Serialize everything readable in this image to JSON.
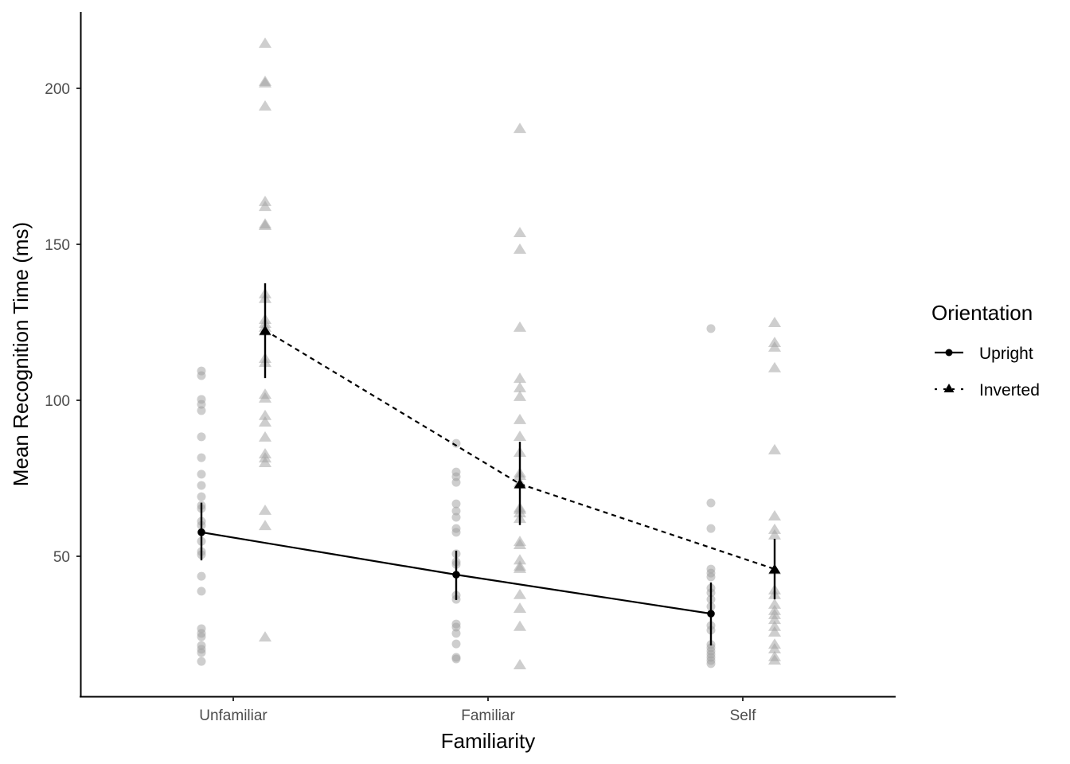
{
  "chart_data": {
    "type": "line",
    "title": "",
    "xlabel": "Familiarity",
    "ylabel": "Mean Recognition Time (ms)",
    "categories": [
      "Unfamiliar",
      "Familiar",
      "Self"
    ],
    "yticks": [
      50,
      100,
      150,
      200
    ],
    "ylim": [
      10,
      225
    ],
    "grid": false,
    "legend": {
      "title": "Orientation",
      "position": "right",
      "entries": [
        {
          "label": "Upright",
          "linestyle": "solid",
          "marker": "circle"
        },
        {
          "label": "Inverted",
          "linestyle": "dashed",
          "marker": "triangle"
        }
      ]
    },
    "series": [
      {
        "name": "Upright",
        "linestyle": "solid",
        "marker": "circle",
        "values": [
          57.7,
          44.1,
          31.6
        ],
        "error_low": [
          48.7,
          36.0,
          21.4
        ],
        "error_high": [
          67.2,
          51.8,
          41.6
        ]
      },
      {
        "name": "Inverted",
        "linestyle": "dashed",
        "marker": "triangle",
        "values": [
          122.4,
          73.2,
          45.9
        ],
        "error_low": [
          107.1,
          60.0,
          36.2
        ],
        "error_high": [
          137.5,
          86.7,
          55.6
        ]
      }
    ],
    "raw_points": {
      "Upright": {
        "Unfamiliar": [
          109.4,
          107.9,
          100.3,
          98.7,
          96.7,
          88.3,
          81.6,
          76.3,
          72.7,
          69.1,
          66.3,
          65.3,
          61.2,
          59.9,
          54.8,
          51.5,
          50.5,
          43.6,
          38.8,
          26.8,
          25.3,
          24.2,
          21.4,
          20.2,
          19.1,
          16.3
        ],
        "Familiar": [
          86.2,
          77.0,
          75.5,
          73.7,
          66.8,
          64.5,
          62.5,
          58.9,
          57.7,
          50.8,
          48.2,
          47.4,
          37.5,
          36.2,
          28.3,
          27.3,
          25.3,
          21.9,
          17.6,
          17.1
        ],
        "Self": [
          123.0,
          67.1,
          58.9,
          45.9,
          44.6,
          43.4,
          39.8,
          38.3,
          36.2,
          33.9,
          27.8,
          26.3,
          21.7,
          20.7,
          19.6,
          18.6,
          17.6,
          16.6,
          15.6
        ]
      },
      "Inverted": {
        "Unfamiliar": [
          214.5,
          202.3,
          201.8,
          194.4,
          163.8,
          162.2,
          156.6,
          156.1,
          134.2,
          132.7,
          126.0,
          124.7,
          123.5,
          122.2,
          113.5,
          112.2,
          102.0,
          100.8,
          95.2,
          93.1,
          88.3,
          82.9,
          81.6,
          80.1,
          64.8,
          59.9,
          24.2
        ],
        "Familiar": [
          187.2,
          153.8,
          148.5,
          123.5,
          107.1,
          104.1,
          101.3,
          93.9,
          88.5,
          83.4,
          76.8,
          76.0,
          73.7,
          65.6,
          65.1,
          64.0,
          62.2,
          54.8,
          53.8,
          48.9,
          46.9,
          46.2,
          37.8,
          33.4,
          27.6,
          15.3
        ],
        "Self": [
          125.0,
          118.6,
          117.1,
          110.5,
          84.2,
          63.0,
          58.7,
          56.9,
          45.7,
          39.3,
          37.8,
          34.7,
          32.7,
          31.4,
          29.8,
          27.6,
          25.8,
          21.9,
          20.4,
          17.9,
          16.8
        ]
      }
    }
  }
}
